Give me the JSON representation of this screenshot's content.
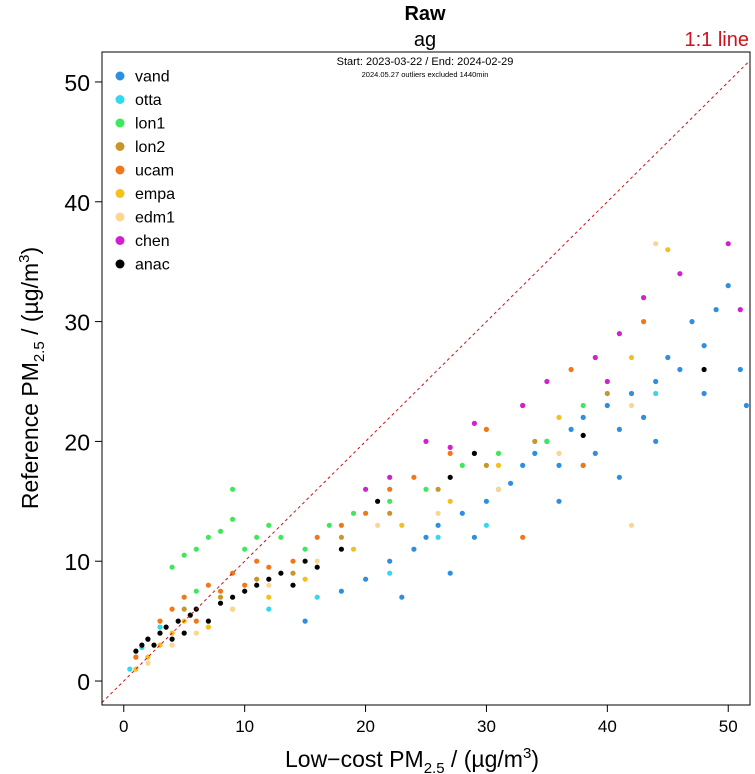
{
  "chart_data": {
    "type": "scatter",
    "title": "Raw",
    "subtitle": "ag",
    "period_text": "Start: 2023-03-22 / End: 2024-02-29",
    "note_text": "2024.05.27 outliers excluded 1440min",
    "reference_line_label": "1:1 line",
    "xlabel": {
      "prefix": "Low−cost PM",
      "sub": "2.5",
      "suffix": " / (µg/m",
      "sup": "3",
      "end": ")"
    },
    "ylabel": {
      "prefix": "Reference PM",
      "sub": "2.5",
      "suffix": " / (µg/m",
      "sup": "3",
      "end": ")"
    },
    "xlim": [
      -1.8,
      51.8
    ],
    "ylim": [
      -2.0,
      52.5
    ],
    "xticks": [
      "0",
      "10",
      "20",
      "30",
      "40",
      "50"
    ],
    "yticks": [
      "0",
      "10",
      "20",
      "30",
      "40",
      "50"
    ],
    "grid": false,
    "legend_position": "top-left",
    "series": [
      {
        "name": "vand",
        "color": "#2E8FE0",
        "points": [
          [
            15,
            5
          ],
          [
            18,
            7.5
          ],
          [
            20,
            8.5
          ],
          [
            22,
            10
          ],
          [
            24,
            11
          ],
          [
            25,
            12
          ],
          [
            26,
            13
          ],
          [
            28,
            14
          ],
          [
            30,
            15
          ],
          [
            31,
            16
          ],
          [
            32,
            16.5
          ],
          [
            33,
            18
          ],
          [
            34,
            19
          ],
          [
            35,
            20
          ],
          [
            36,
            18
          ],
          [
            37,
            21
          ],
          [
            38,
            22
          ],
          [
            39,
            19
          ],
          [
            40,
            23
          ],
          [
            41,
            21
          ],
          [
            42,
            24
          ],
          [
            43,
            22
          ],
          [
            44,
            25
          ],
          [
            45,
            27
          ],
          [
            46,
            26
          ],
          [
            47,
            30
          ],
          [
            48,
            28
          ],
          [
            49,
            31
          ],
          [
            50,
            33
          ],
          [
            51,
            26
          ],
          [
            51.5,
            23
          ],
          [
            29,
            12
          ],
          [
            27,
            9
          ],
          [
            23,
            7
          ],
          [
            36,
            15
          ],
          [
            41,
            17
          ],
          [
            44,
            20
          ],
          [
            48,
            24
          ]
        ]
      },
      {
        "name": "otta",
        "color": "#33D8F0",
        "points": [
          [
            0.5,
            1
          ],
          [
            1,
            2
          ],
          [
            1.5,
            2.8
          ],
          [
            2,
            3.5
          ],
          [
            3,
            4.5
          ],
          [
            12,
            6
          ],
          [
            16,
            7
          ],
          [
            22,
            9
          ],
          [
            26,
            12
          ],
          [
            30,
            13
          ],
          [
            38,
            18
          ],
          [
            44,
            24
          ]
        ]
      },
      {
        "name": "lon1",
        "color": "#3EE85A",
        "points": [
          [
            4,
            9.5
          ],
          [
            5,
            10.5
          ],
          [
            6,
            11
          ],
          [
            7,
            12
          ],
          [
            8,
            12.5
          ],
          [
            9,
            13.5
          ],
          [
            10,
            11
          ],
          [
            11,
            12
          ],
          [
            12,
            13
          ],
          [
            13,
            12
          ],
          [
            15,
            11
          ],
          [
            17,
            13
          ],
          [
            19,
            14
          ],
          [
            22,
            15
          ],
          [
            25,
            16
          ],
          [
            28,
            18
          ],
          [
            31,
            19
          ],
          [
            35,
            20
          ],
          [
            38,
            23
          ],
          [
            9,
            16
          ],
          [
            6,
            7.5
          ]
        ]
      },
      {
        "name": "lon2",
        "color": "#C8962A",
        "points": [
          [
            3,
            4
          ],
          [
            5,
            6
          ],
          [
            8,
            7
          ],
          [
            11,
            8.5
          ],
          [
            14,
            9
          ],
          [
            18,
            12
          ],
          [
            22,
            14
          ],
          [
            26,
            16
          ],
          [
            30,
            18
          ],
          [
            34,
            20
          ],
          [
            40,
            24
          ]
        ]
      },
      {
        "name": "ucam",
        "color": "#F07818",
        "points": [
          [
            1,
            2
          ],
          [
            2,
            3.5
          ],
          [
            3,
            5
          ],
          [
            4,
            6
          ],
          [
            5,
            7
          ],
          [
            6,
            5
          ],
          [
            7,
            8
          ],
          [
            8,
            7.5
          ],
          [
            9,
            9
          ],
          [
            10,
            8
          ],
          [
            11,
            10
          ],
          [
            12,
            9.5
          ],
          [
            14,
            10
          ],
          [
            16,
            12
          ],
          [
            18,
            13
          ],
          [
            20,
            14
          ],
          [
            22,
            16
          ],
          [
            24,
            17
          ],
          [
            27,
            19
          ],
          [
            30,
            21
          ],
          [
            33,
            23
          ],
          [
            37,
            26
          ],
          [
            43,
            30
          ],
          [
            38,
            18
          ],
          [
            33,
            12
          ]
        ]
      },
      {
        "name": "empa",
        "color": "#F5C01A",
        "points": [
          [
            1,
            1
          ],
          [
            2,
            2
          ],
          [
            3,
            3
          ],
          [
            4,
            4
          ],
          [
            5,
            5
          ],
          [
            7,
            4.5
          ],
          [
            9,
            6
          ],
          [
            12,
            7
          ],
          [
            15,
            8.5
          ],
          [
            19,
            11
          ],
          [
            23,
            13
          ],
          [
            27,
            15
          ],
          [
            31,
            18
          ],
          [
            36,
            22
          ],
          [
            42,
            27
          ],
          [
            45,
            36
          ]
        ]
      },
      {
        "name": "edm1",
        "color": "#FAD690",
        "points": [
          [
            2,
            1.5
          ],
          [
            4,
            3
          ],
          [
            6,
            4
          ],
          [
            9,
            6
          ],
          [
            12,
            8
          ],
          [
            16,
            10
          ],
          [
            21,
            13
          ],
          [
            26,
            14
          ],
          [
            31,
            16
          ],
          [
            36,
            19
          ],
          [
            42,
            23
          ],
          [
            44,
            36.5
          ],
          [
            42,
            13
          ]
        ]
      },
      {
        "name": "chen",
        "color": "#D020D0",
        "points": [
          [
            20,
            16
          ],
          [
            22,
            17
          ],
          [
            25,
            20
          ],
          [
            27,
            19.5
          ],
          [
            29,
            21.5
          ],
          [
            33,
            23
          ],
          [
            35,
            25
          ],
          [
            39,
            27
          ],
          [
            41,
            29
          ],
          [
            43,
            32
          ],
          [
            46,
            34
          ],
          [
            50,
            36.5
          ],
          [
            51,
            31
          ],
          [
            40,
            25
          ]
        ]
      },
      {
        "name": "anac",
        "color": "#000000",
        "points": [
          [
            1,
            2.5
          ],
          [
            1.5,
            3
          ],
          [
            2,
            3.5
          ],
          [
            2.5,
            3
          ],
          [
            3,
            4
          ],
          [
            3.5,
            4.5
          ],
          [
            4,
            3.5
          ],
          [
            4.5,
            5
          ],
          [
            5,
            4
          ],
          [
            5.5,
            5.5
          ],
          [
            6,
            6
          ],
          [
            7,
            5
          ],
          [
            8,
            6.5
          ],
          [
            9,
            7
          ],
          [
            10,
            7.5
          ],
          [
            11,
            8
          ],
          [
            12,
            8.5
          ],
          [
            13,
            9
          ],
          [
            14,
            8
          ],
          [
            15,
            10
          ],
          [
            16,
            9.5
          ],
          [
            18,
            11
          ],
          [
            21,
            15
          ],
          [
            27,
            17
          ],
          [
            29,
            19
          ],
          [
            38,
            20.5
          ],
          [
            48,
            26
          ]
        ]
      }
    ]
  }
}
